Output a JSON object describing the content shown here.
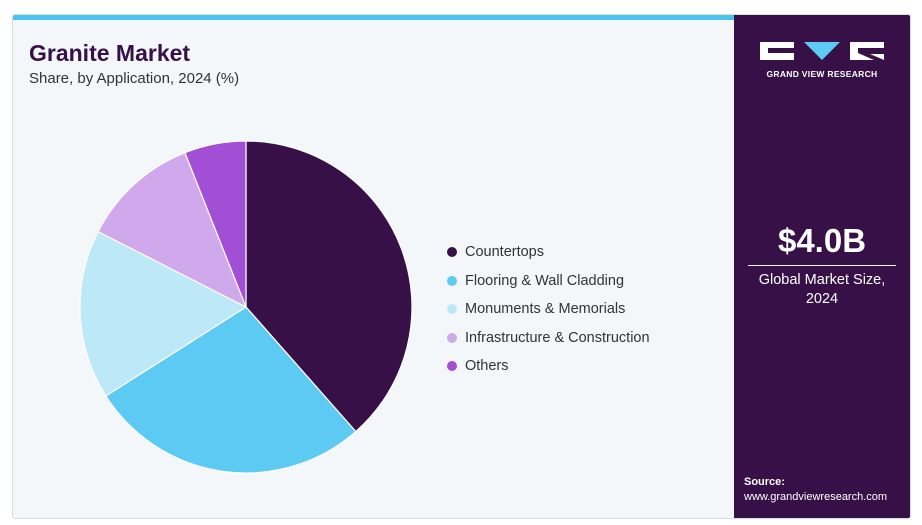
{
  "header": {
    "title": "Granite Market",
    "subtitle": "Share, by Application, 2024 (%)"
  },
  "chart_data": {
    "type": "pie",
    "categories": [
      "Countertops",
      "Flooring & Wall Cladding",
      "Monuments & Memorials",
      "Infrastructure & Construction",
      "Others"
    ],
    "values": [
      38.5,
      27.5,
      16.5,
      11.5,
      6.0
    ],
    "colors": [
      "#361046",
      "#5dcaf4",
      "#bde8f8",
      "#d0a8ec",
      "#a24fd6"
    ],
    "legend_position": "right"
  },
  "sidebar": {
    "logo_text": "GRAND VIEW RESEARCH",
    "metric_value": "$4.0B",
    "metric_label_line1": "Global Market Size,",
    "metric_label_line2": "2024",
    "source_label": "Source:",
    "source_url": "www.grandviewresearch.com"
  }
}
